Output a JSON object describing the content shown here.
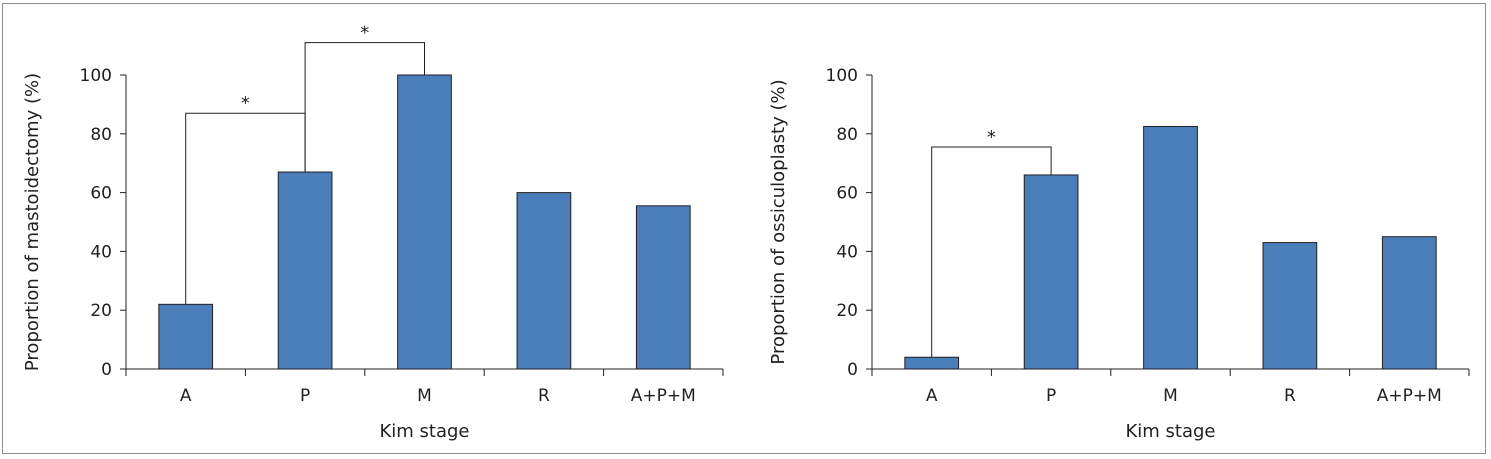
{
  "chart_data": [
    {
      "type": "bar",
      "categories": [
        "A",
        "P",
        "M",
        "R",
        "A+P+M"
      ],
      "values": [
        22,
        67,
        100,
        60,
        55.5
      ],
      "xlabel": "Kim stage",
      "ylabel": "Proportion of mastoidectomy (%)",
      "ylim": [
        0,
        100
      ],
      "yticks": [
        0,
        20,
        40,
        60,
        80,
        100
      ],
      "bar_color": "#4a7ebb",
      "significance": [
        {
          "from": "A",
          "to": "P",
          "label": "*",
          "bracket_y": 87
        },
        {
          "from": "P",
          "to": "M",
          "label": "*",
          "bracket_y": 111
        }
      ]
    },
    {
      "type": "bar",
      "categories": [
        "A",
        "P",
        "M",
        "R",
        "A+P+M"
      ],
      "values": [
        4,
        66,
        82.5,
        43,
        45
      ],
      "xlabel": "Kim stage",
      "ylabel": "Proportion of ossiculoplasty (%)",
      "ylim": [
        0,
        100
      ],
      "yticks": [
        0,
        20,
        40,
        60,
        80,
        100
      ],
      "bar_color": "#4a7ebb",
      "significance": [
        {
          "from": "A",
          "to": "P",
          "label": "*",
          "bracket_y": 75.5
        }
      ]
    }
  ]
}
